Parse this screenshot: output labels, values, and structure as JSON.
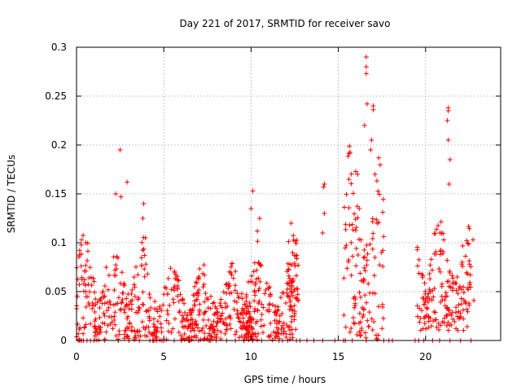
{
  "chart_data": {
    "type": "scatter",
    "title": "Day 221 of 2017, SRMTID for receiver savo",
    "xlabel": "GPS time / hours",
    "ylabel": "SRMTID / TECUs",
    "xlim": [
      0,
      24.3
    ],
    "ylim": [
      0,
      0.3
    ],
    "xticks": [
      0,
      5,
      10,
      15,
      20
    ],
    "xtick_labels": [
      "0",
      "5",
      "10",
      "15",
      "20"
    ],
    "yticks": [
      0,
      0.05,
      0.1,
      0.15,
      0.2,
      0.25,
      0.3
    ],
    "ytick_labels": [
      "0",
      "0.05",
      "0.1",
      "0.15",
      "0.2",
      "0.25",
      "0.3"
    ],
    "grid": true,
    "marker": "+",
    "series": [
      {
        "name": "SRMTID",
        "color": "#ff0000",
        "clusters": [
          {
            "t_start": 0.0,
            "t_end": 4.1,
            "y_min": 0.0,
            "y_max": 0.11
          },
          {
            "t_start": 4.1,
            "t_end": 12.6,
            "y_min": 0.0,
            "y_max": 0.08
          },
          {
            "t_start": 9.7,
            "t_end": 10.5,
            "y_min": 0.0,
            "y_max": 0.13
          },
          {
            "t_start": 12.0,
            "t_end": 12.7,
            "y_min": 0.03,
            "y_max": 0.12
          },
          {
            "t_start": 15.3,
            "t_end": 17.6,
            "y_min": 0.0,
            "y_max": 0.22
          },
          {
            "t_start": 19.5,
            "t_end": 22.8,
            "y_min": 0.01,
            "y_max": 0.13
          }
        ],
        "points": [
          {
            "x": 2.5,
            "y": 0.195
          },
          {
            "x": 2.9,
            "y": 0.162
          },
          {
            "x": 2.25,
            "y": 0.15
          },
          {
            "x": 2.55,
            "y": 0.147
          },
          {
            "x": 3.85,
            "y": 0.14
          },
          {
            "x": 3.8,
            "y": 0.125
          },
          {
            "x": 10.1,
            "y": 0.153
          },
          {
            "x": 10.0,
            "y": 0.135
          },
          {
            "x": 12.3,
            "y": 0.12
          },
          {
            "x": 14.2,
            "y": 0.16
          },
          {
            "x": 14.15,
            "y": 0.157
          },
          {
            "x": 14.2,
            "y": 0.13
          },
          {
            "x": 14.1,
            "y": 0.11
          },
          {
            "x": 16.6,
            "y": 0.29
          },
          {
            "x": 16.6,
            "y": 0.28
          },
          {
            "x": 16.6,
            "y": 0.273
          },
          {
            "x": 16.65,
            "y": 0.242
          },
          {
            "x": 17.0,
            "y": 0.24
          },
          {
            "x": 17.0,
            "y": 0.236
          },
          {
            "x": 16.5,
            "y": 0.22
          },
          {
            "x": 16.9,
            "y": 0.205
          },
          {
            "x": 16.85,
            "y": 0.195
          },
          {
            "x": 21.3,
            "y": 0.238
          },
          {
            "x": 21.3,
            "y": 0.235
          },
          {
            "x": 21.25,
            "y": 0.225
          },
          {
            "x": 21.3,
            "y": 0.205
          },
          {
            "x": 21.4,
            "y": 0.185
          },
          {
            "x": 21.35,
            "y": 0.16
          },
          {
            "x": 16.1,
            "y": 0.17
          },
          {
            "x": 17.1,
            "y": 0.17
          },
          {
            "x": 16.2,
            "y": 0.135
          }
        ],
        "zero_points_x": [
          0.1,
          0.2,
          0.3,
          0.4,
          0.6,
          0.8,
          1.0,
          1.6,
          2.4,
          3.0,
          3.6,
          4.2,
          4.4,
          4.6,
          4.9,
          5.0,
          5.6,
          6.0,
          6.5,
          7.0,
          7.6,
          8.0,
          8.6,
          9.1,
          9.6,
          10.1,
          10.6,
          11.6,
          11.8,
          12.1,
          12.6,
          12.8,
          13.2,
          13.6,
          14.1,
          14.8,
          15.3,
          15.4,
          15.8,
          16.6,
          17.6,
          17.9,
          18.1,
          19.4,
          19.6,
          19.9,
          20.4,
          20.8,
          21.4,
          22.0,
          22.6
        ]
      }
    ]
  }
}
